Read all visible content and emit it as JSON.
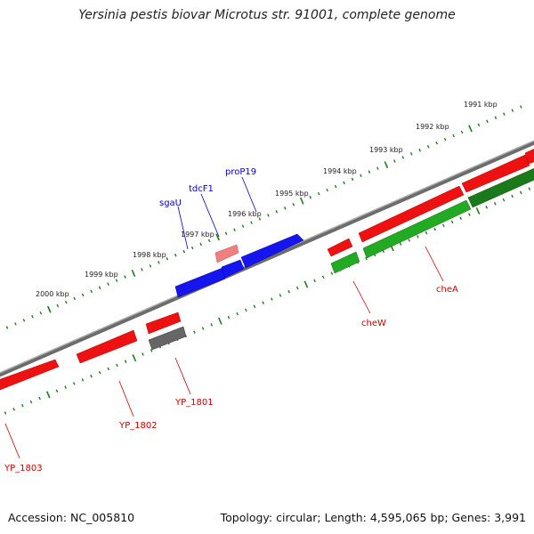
{
  "title": "Yersinia pestis biovar Microtus str. 91001, complete genome",
  "footer": {
    "accession": "Accession: NC_005810",
    "summary": "Topology: circular; Length: 4,595,065 bp; Genes: 3,991"
  },
  "colors": {
    "backbone": "#8a8a8a",
    "ticks": "#1f7a1f",
    "gene_red": "#ee1111",
    "gene_pink": "#f08080",
    "gene_blue": "#1515ee",
    "gene_green": "#22aa22",
    "gene_darkgreen": "#1a7a1a",
    "gene_gray": "#666666",
    "label_red": "#cc0000",
    "label_blue": "#0000cc"
  },
  "ruler": {
    "unit": "kbp",
    "labels": [
      "1991 kbp",
      "1992 kbp",
      "1993 kbp",
      "1994 kbp",
      "1995 kbp",
      "1996 kbp",
      "1997 kbp",
      "1998 kbp",
      "1999 kbp",
      "2000 kbp"
    ]
  },
  "labels": {
    "blue": [
      "sgaU",
      "tdcF1",
      "proP19"
    ],
    "red": [
      "cheA",
      "cheW",
      "YP_1801",
      "YP_1802",
      "YP_1803"
    ]
  }
}
